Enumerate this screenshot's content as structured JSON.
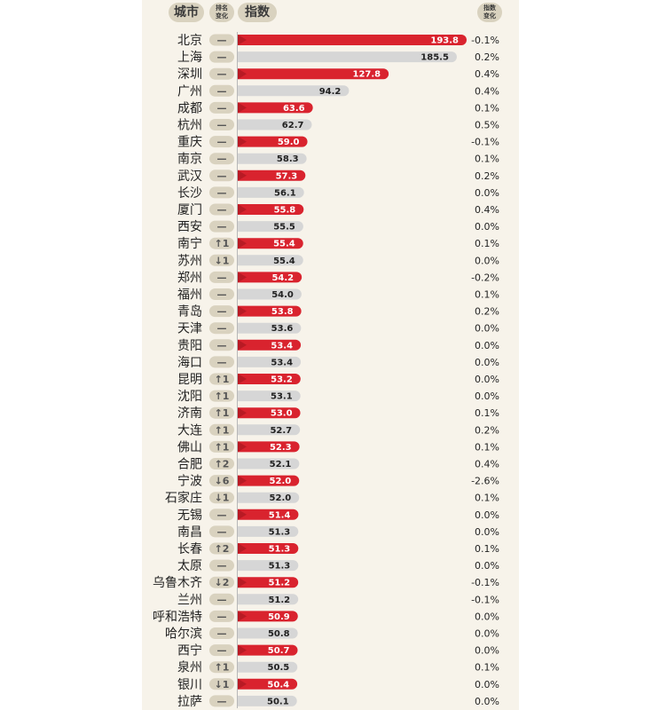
{
  "header": {
    "city": "城市",
    "rank_change": "排名\n变化",
    "index": "指数",
    "index_change": "指数\n变化"
  },
  "colors": {
    "red": "#d9232e",
    "gray": "#d6d6d6",
    "pill": "#d9d2bf",
    "panel": "#f7f3ea"
  },
  "chart_data": {
    "type": "bar",
    "orientation": "horizontal",
    "categories": [
      "北京",
      "上海",
      "深圳",
      "广州",
      "成都",
      "杭州",
      "重庆",
      "南京",
      "武汉",
      "长沙",
      "厦门",
      "西安",
      "南宁",
      "苏州",
      "郑州",
      "福州",
      "青岛",
      "天津",
      "贵阳",
      "海口",
      "昆明",
      "沈阳",
      "济南",
      "大连",
      "佛山",
      "合肥",
      "宁波",
      "石家庄",
      "无锡",
      "南昌",
      "长春",
      "太原",
      "乌鲁木齐",
      "兰州",
      "呼和浩特",
      "哈尔滨",
      "西宁",
      "泉州",
      "银川",
      "拉萨"
    ],
    "values": [
      193.8,
      185.5,
      127.8,
      94.2,
      63.6,
      62.7,
      59.0,
      58.3,
      57.3,
      56.1,
      55.8,
      55.5,
      55.4,
      55.4,
      54.2,
      54.0,
      53.8,
      53.6,
      53.4,
      53.4,
      53.2,
      53.1,
      53.0,
      52.7,
      52.3,
      52.1,
      52.0,
      52.0,
      51.4,
      51.3,
      51.3,
      51.3,
      51.2,
      51.2,
      50.9,
      50.8,
      50.7,
      50.5,
      50.4,
      50.1
    ],
    "value_labels": [
      "193.8",
      "185.5",
      "127.8",
      "94.2",
      "63.6",
      "62.7",
      "59.0",
      "58.3",
      "57.3",
      "56.1",
      "55.8",
      "55.5",
      "55.4",
      "55.4",
      "54.2",
      "54.0",
      "53.8",
      "53.6",
      "53.4",
      "53.4",
      "53.2",
      "53.1",
      "53.0",
      "52.7",
      "52.3",
      "52.1",
      "52.0",
      "52.0",
      "51.4",
      "51.3",
      "51.3",
      "51.3",
      "51.2",
      "51.2",
      "50.9",
      "50.8",
      "50.7",
      "50.5",
      "50.4",
      "50.1"
    ],
    "rank_change": [
      "—",
      "—",
      "—",
      "—",
      "—",
      "—",
      "—",
      "—",
      "—",
      "—",
      "—",
      "—",
      "↑1",
      "↓1",
      "—",
      "—",
      "—",
      "—",
      "—",
      "—",
      "↑1",
      "↑1",
      "↑1",
      "↑1",
      "↑1",
      "↑2",
      "↓6",
      "↓1",
      "—",
      "—",
      "↑2",
      "—",
      "↓2",
      "—",
      "—",
      "—",
      "—",
      "↑1",
      "↓1",
      "—"
    ],
    "index_change": [
      "-0.1%",
      "0.2%",
      "0.4%",
      "0.4%",
      "0.1%",
      "0.5%",
      "-0.1%",
      "0.1%",
      "0.2%",
      "0.0%",
      "0.4%",
      "0.0%",
      "0.1%",
      "0.0%",
      "-0.2%",
      "0.1%",
      "0.2%",
      "0.0%",
      "0.0%",
      "0.0%",
      "0.0%",
      "0.0%",
      "0.1%",
      "0.2%",
      "0.1%",
      "0.4%",
      "-2.6%",
      "0.1%",
      "0.0%",
      "0.0%",
      "0.1%",
      "0.0%",
      "-0.1%",
      "-0.1%",
      "0.0%",
      "0.0%",
      "0.0%",
      "0.1%",
      "0.0%",
      "0.0%"
    ],
    "bar_color": [
      "red",
      "gray",
      "red",
      "gray",
      "red",
      "gray",
      "red",
      "gray",
      "red",
      "gray",
      "red",
      "gray",
      "red",
      "gray",
      "red",
      "gray",
      "red",
      "gray",
      "red",
      "gray",
      "red",
      "gray",
      "red",
      "gray",
      "red",
      "gray",
      "red",
      "gray",
      "red",
      "gray",
      "red",
      "gray",
      "red",
      "gray",
      "red",
      "gray",
      "red",
      "gray",
      "red",
      "gray"
    ],
    "xlim": [
      0,
      200
    ]
  }
}
